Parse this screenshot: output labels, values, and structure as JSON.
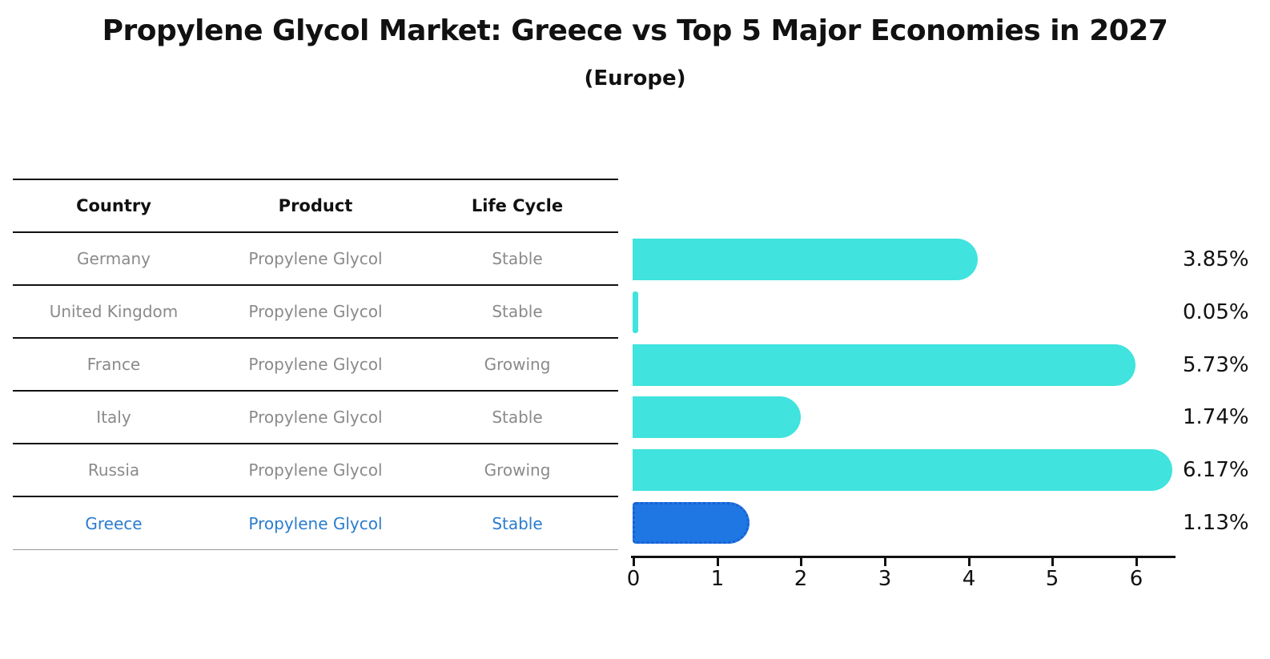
{
  "title": "Propylene Glycol Market: Greece vs Top 5 Major Economies in 2027",
  "subtitle": "(Europe)",
  "table": {
    "headers": [
      "Country",
      "Product",
      "Life Cycle"
    ],
    "rows": [
      [
        "Germany",
        "Propylene Glycol",
        "Stable"
      ],
      [
        "United Kingdom",
        "Propylene Glycol",
        "Stable"
      ],
      [
        "France",
        "Propylene Glycol",
        "Growing"
      ],
      [
        "Italy",
        "Propylene Glycol",
        "Stable"
      ],
      [
        "Russia",
        "Propylene Glycol",
        "Growing"
      ],
      [
        "Greece",
        "Propylene Glycol",
        "Stable"
      ]
    ],
    "highlight_row_index": 5
  },
  "chart_data": {
    "type": "bar",
    "orientation": "horizontal",
    "title": "Propylene Glycol Market: Greece vs Top 5 Major Economies in 2027 (Europe)",
    "categories": [
      "Germany",
      "United Kingdom",
      "France",
      "Italy",
      "Russia",
      "Greece"
    ],
    "values": [
      3.85,
      0.05,
      5.73,
      1.74,
      6.17,
      1.13
    ],
    "value_labels": [
      "3.85%",
      "0.05%",
      "5.73%",
      "1.74%",
      "6.17%",
      "1.13%"
    ],
    "x_ticks": [
      "0",
      "1",
      "2",
      "3",
      "4",
      "5",
      "6"
    ],
    "xlim": [
      0,
      6.5
    ],
    "xlabel": "",
    "ylabel": "",
    "grid": false,
    "legend": false,
    "highlight_index": 5,
    "colors": {
      "bar": "#40E3DD",
      "highlight_bar": "#1E77E3",
      "highlight_border": "#1A5FD3",
      "axis": "#111111",
      "table_text": "#8A8A8A",
      "highlight_text": "#2A7CCE",
      "header_text": "#111111"
    }
  }
}
